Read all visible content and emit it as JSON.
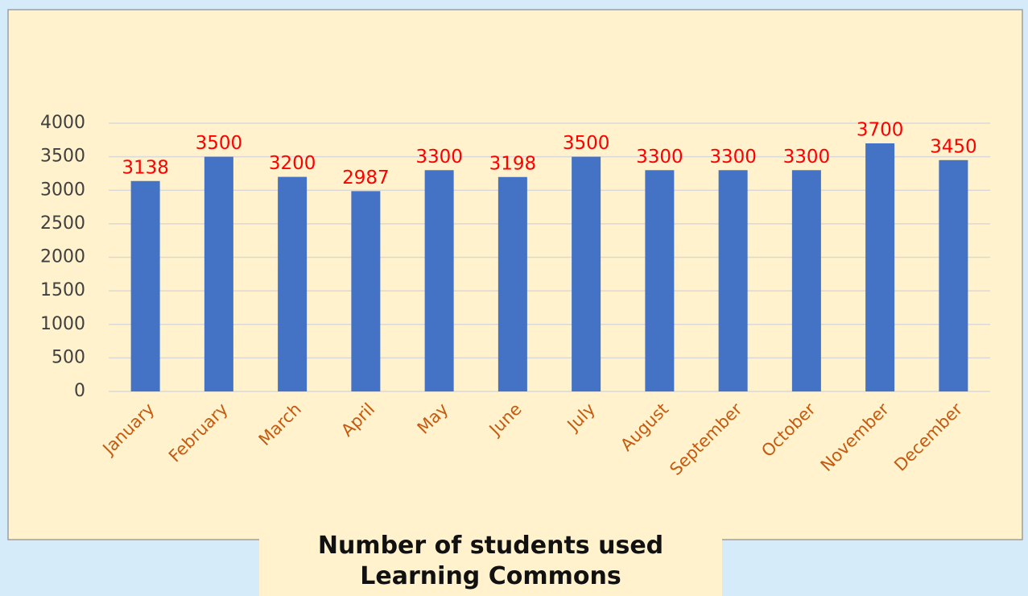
{
  "chart_data": {
    "type": "bar",
    "title": "Number of students used Learning Commons",
    "categories": [
      "January",
      "February",
      "March",
      "April",
      "May",
      "June",
      "July",
      "August",
      "September",
      "October",
      "November",
      "December"
    ],
    "values": [
      3138,
      3500,
      3200,
      2987,
      3300,
      3198,
      3500,
      3300,
      3300,
      3300,
      3700,
      3450
    ],
    "color": "#4472c4",
    "value_label_color": "#ff0000",
    "category_label_color": "#c55a11",
    "ylim": [
      0,
      4000
    ],
    "yticks": [
      0,
      500,
      1000,
      1500,
      2000,
      2500,
      3000,
      3500,
      4000
    ],
    "grid": true
  }
}
